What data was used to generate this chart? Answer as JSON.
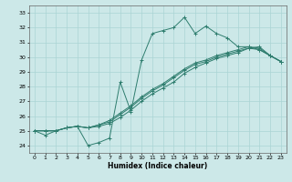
{
  "xlabel": "Humidex (Indice chaleur)",
  "xlim": [
    -0.5,
    23.5
  ],
  "ylim": [
    23.5,
    33.5
  ],
  "yticks": [
    24,
    25,
    26,
    27,
    28,
    29,
    30,
    31,
    32,
    33
  ],
  "xticks": [
    0,
    1,
    2,
    3,
    4,
    5,
    6,
    7,
    8,
    9,
    10,
    11,
    12,
    13,
    14,
    15,
    16,
    17,
    18,
    19,
    20,
    21,
    22,
    23
  ],
  "bg_color": "#cce8e8",
  "line_color": "#2e7d6e",
  "grid_color": "#aad4d4",
  "lines": [
    [
      25.0,
      24.7,
      25.0,
      25.2,
      25.3,
      24.0,
      24.2,
      24.5,
      28.3,
      26.3,
      29.8,
      31.6,
      31.8,
      32.0,
      32.7,
      31.6,
      32.1,
      31.6,
      31.3,
      30.7,
      30.7,
      30.5,
      30.1,
      29.7
    ],
    [
      25.0,
      25.0,
      25.0,
      25.2,
      25.3,
      25.2,
      25.3,
      25.5,
      25.9,
      26.4,
      27.0,
      27.5,
      27.9,
      28.3,
      28.9,
      29.3,
      29.6,
      29.9,
      30.1,
      30.3,
      30.6,
      30.7,
      30.1,
      29.7
    ],
    [
      25.0,
      25.0,
      25.0,
      25.2,
      25.3,
      25.2,
      25.4,
      25.6,
      26.1,
      26.6,
      27.2,
      27.7,
      28.1,
      28.6,
      29.1,
      29.5,
      29.7,
      30.0,
      30.2,
      30.4,
      30.6,
      30.5,
      30.1,
      29.7
    ],
    [
      25.0,
      25.0,
      25.0,
      25.2,
      25.3,
      25.2,
      25.4,
      25.7,
      26.2,
      26.7,
      27.3,
      27.8,
      28.2,
      28.7,
      29.2,
      29.6,
      29.8,
      30.1,
      30.3,
      30.5,
      30.7,
      30.6,
      30.1,
      29.7
    ]
  ]
}
